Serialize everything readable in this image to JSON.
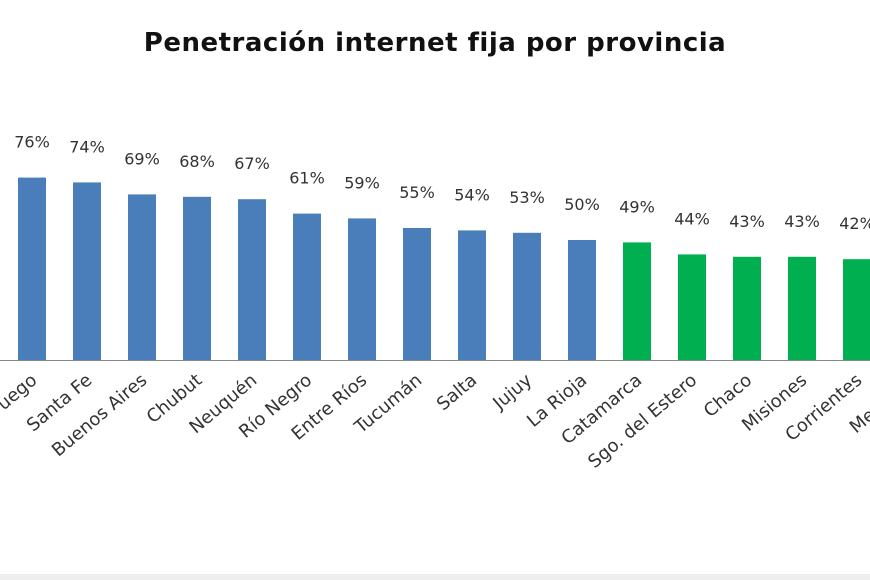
{
  "chart_data": {
    "type": "bar",
    "title": "Penetración internet fija por provincia",
    "categories": [
      "Tierra del Fuego",
      "Santa Fe",
      "Buenos Aires",
      "Chubut",
      "Neuquén",
      "Río Negro",
      "Entre Ríos",
      "Tucumán",
      "Salta",
      "Jujuy",
      "La Rioja",
      "Catamarca",
      "Sgo. del  Estero",
      "Chaco",
      "Misiones",
      "Corrientes",
      "Mendoza"
    ],
    "values": [
      76,
      74,
      69,
      68,
      67,
      61,
      59,
      55,
      54,
      53,
      50,
      49,
      44,
      43,
      43,
      42,
      null
    ],
    "value_labels": [
      "76%",
      "74%",
      "69%",
      "68%",
      "67%",
      "61%",
      "59%",
      "55%",
      "54%",
      "53%",
      "50%",
      "49%",
      "44%",
      "43%",
      "43%",
      "42%",
      ""
    ],
    "bar_colors": [
      "#4a7ebb",
      "#4a7ebb",
      "#4a7ebb",
      "#4a7ebb",
      "#4a7ebb",
      "#4a7ebb",
      "#4a7ebb",
      "#4a7ebb",
      "#4a7ebb",
      "#4a7ebb",
      "#4a7ebb",
      "#00b050",
      "#00b050",
      "#00b050",
      "#00b050",
      "#00b050",
      "#00b050"
    ],
    "xlabel": "",
    "ylabel": "",
    "ylim": [
      0,
      80
    ],
    "grid": false,
    "legend": "none"
  }
}
